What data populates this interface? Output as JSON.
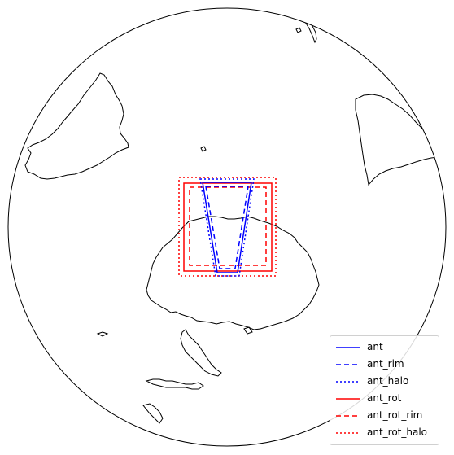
{
  "map": {
    "projection": "orthographic",
    "regions": [
      {
        "name": "ant",
        "color": "#0000ff",
        "linestyle": "solid"
      },
      {
        "name": "ant_rim",
        "color": "#0000ff",
        "linestyle": "dashed"
      },
      {
        "name": "ant_halo",
        "color": "#0000ff",
        "linestyle": "dotted"
      },
      {
        "name": "ant_rot",
        "color": "#ff0000",
        "linestyle": "solid"
      },
      {
        "name": "ant_rot_rim",
        "color": "#ff0000",
        "linestyle": "dashed"
      },
      {
        "name": "ant_rot_halo",
        "color": "#ff0000",
        "linestyle": "dotted"
      }
    ]
  },
  "legend": {
    "entries": [
      {
        "label": "ant",
        "color": "#0000ff",
        "linestyle": "solid"
      },
      {
        "label": "ant_rim",
        "color": "#0000ff",
        "linestyle": "dashed"
      },
      {
        "label": "ant_halo",
        "color": "#0000ff",
        "linestyle": "dotted"
      },
      {
        "label": "ant_rot",
        "color": "#ff0000",
        "linestyle": "solid"
      },
      {
        "label": "ant_rot_rim",
        "color": "#ff0000",
        "linestyle": "dashed"
      },
      {
        "label": "ant_rot_halo",
        "color": "#ff0000",
        "linestyle": "dotted"
      }
    ]
  }
}
